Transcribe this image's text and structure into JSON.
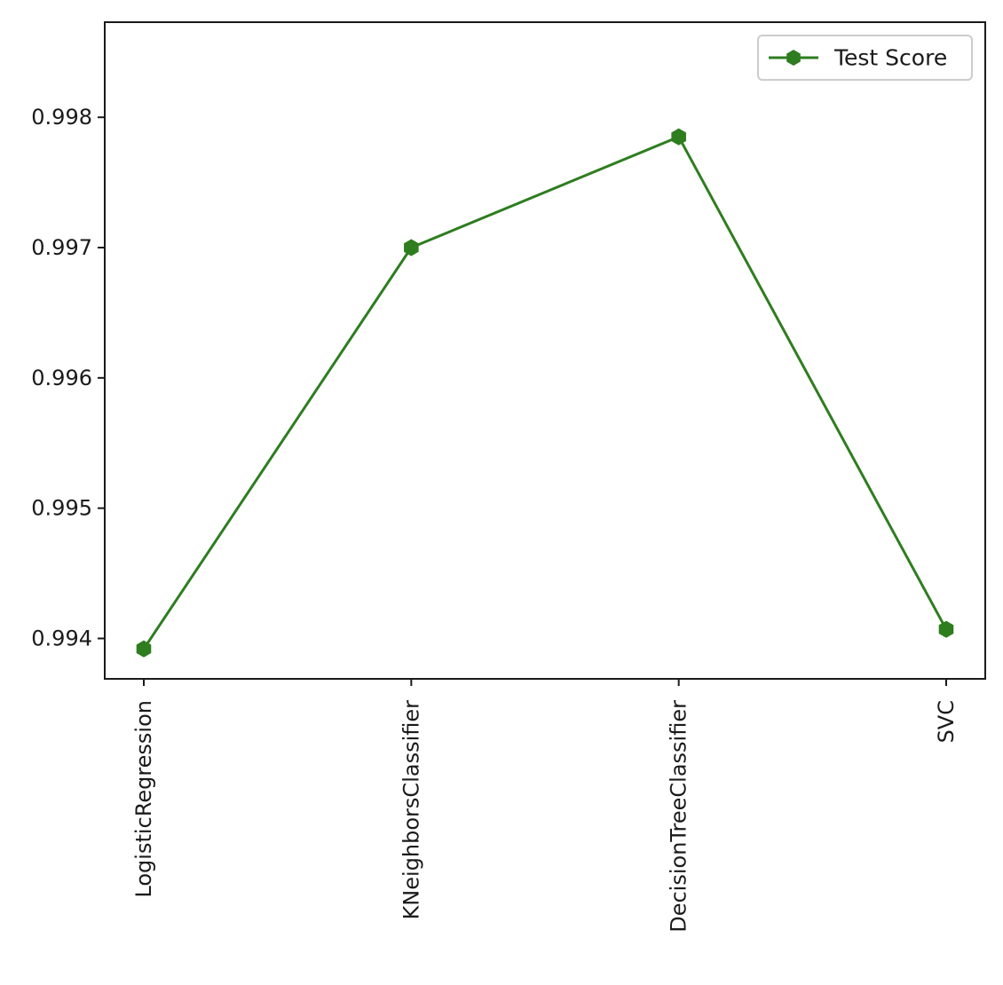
{
  "chart_data": {
    "type": "line",
    "categories": [
      "LogisticRegression",
      "KNeighborsClassifier",
      "DecisionTreeClassifier",
      "SVC"
    ],
    "series": [
      {
        "name": "Test Score",
        "values": [
          0.99392,
          0.997,
          0.99785,
          0.99407
        ],
        "color": "#2e7d1f",
        "marker": "hexagon"
      }
    ],
    "ylim": [
      0.99369,
      0.99873
    ],
    "yticks": [
      0.994,
      0.995,
      0.996,
      0.997,
      0.998
    ],
    "ytick_labels": [
      "0.994",
      "0.995",
      "0.996",
      "0.997",
      "0.998"
    ],
    "xtick_rotation": "vertical",
    "grid": false,
    "legend": {
      "position": "top-right"
    }
  }
}
